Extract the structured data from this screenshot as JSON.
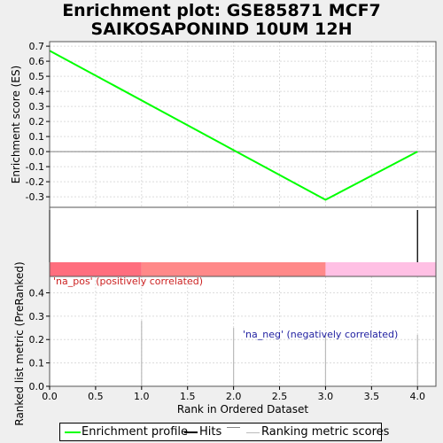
{
  "title_line1": "Enrichment plot: GSE85871 MCF7",
  "title_line2": "SAIKOSAPONIND 10UM 12H",
  "colors": {
    "es_line": "#00ff00",
    "hits": "#000000",
    "metric": "#bbbbbb",
    "heat_pos_strong": "#ff6e7e",
    "heat_pos": "#ff8989",
    "heat_neg": "#ffc0e4",
    "label_pos": "#cc2222",
    "label_neg": "#1f1fa0"
  },
  "legend": {
    "es_label": "Enrichment profile",
    "hits_label": "Hits",
    "metric_label": "Ranking metric scores"
  },
  "chart_data": {
    "type": "line",
    "x": [
      0,
      1,
      2,
      3,
      4
    ],
    "xlabel": "Rank in Ordered Dataset",
    "xlim": [
      0,
      4.2
    ],
    "xticks": [
      "0.0",
      "0.5",
      "1.0",
      "1.5",
      "2.0",
      "2.5",
      "3.0",
      "3.5",
      "4.0"
    ],
    "es": {
      "ylabel": "Enrichment score (ES)",
      "ylim": [
        -0.37,
        0.73
      ],
      "yticks": [
        "0.7",
        "0.6",
        "0.5",
        "0.4",
        "0.3",
        "0.2",
        "0.1",
        "0.0",
        "-0.1",
        "-0.2",
        "-0.3"
      ],
      "points": [
        [
          0,
          0.67
        ],
        [
          3,
          -0.32
        ],
        [
          4,
          0.0
        ]
      ]
    },
    "hits": [
      0,
      4
    ],
    "heatmap": [
      {
        "from": 0,
        "to": 1,
        "color_key": "heat_pos_strong"
      },
      {
        "from": 1,
        "to": 3,
        "color_key": "heat_pos"
      },
      {
        "from": 3,
        "to": 4.2,
        "color_key": "heat_neg"
      }
    ],
    "metric": {
      "ylabel": "Ranked list metric (PreRanked)",
      "ylim": [
        0,
        0.47
      ],
      "yticks": [
        "0.4",
        "0.3",
        "0.2",
        "0.1",
        "0.0"
      ],
      "values": [
        [
          1,
          0.28
        ],
        [
          2,
          0.25
        ],
        [
          3,
          0.22
        ],
        [
          4,
          0.22
        ]
      ]
    },
    "annotations": {
      "pos": "'na_pos' (positively correlated)",
      "neg": "'na_neg' (negatively correlated)"
    }
  }
}
